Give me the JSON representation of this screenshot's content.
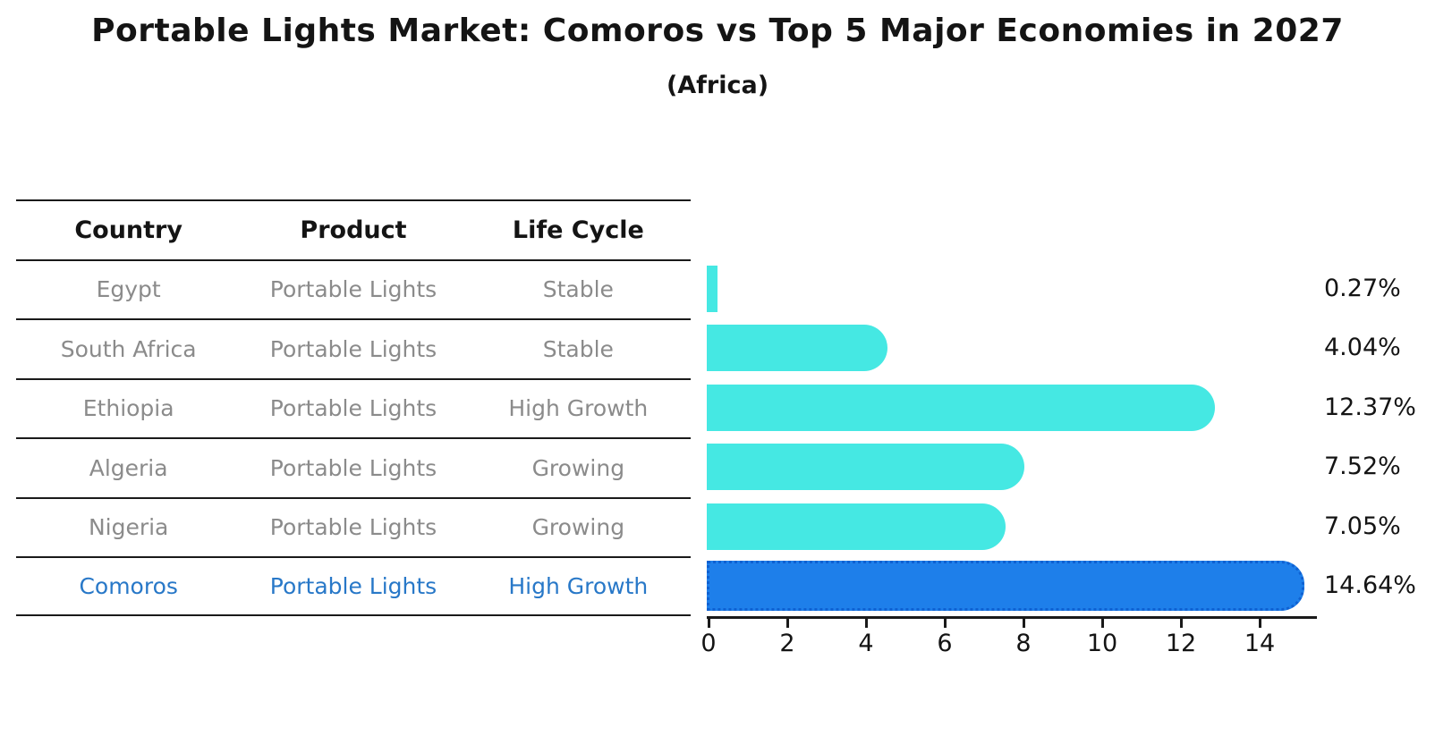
{
  "title": "Portable Lights Market: Comoros vs Top 5 Major Economies in 2027",
  "subtitle": "(Africa)",
  "table": {
    "headers": [
      "Country",
      "Product",
      "Life Cycle"
    ],
    "rows": [
      {
        "country": "Egypt",
        "product": "Portable Lights",
        "life_cycle": "Stable",
        "highlight": false
      },
      {
        "country": "South Africa",
        "product": "Portable Lights",
        "life_cycle": "Stable",
        "highlight": false
      },
      {
        "country": "Ethiopia",
        "product": "Portable Lights",
        "life_cycle": "High Growth",
        "highlight": false
      },
      {
        "country": "Algeria",
        "product": "Portable Lights",
        "life_cycle": "Growing",
        "highlight": false
      },
      {
        "country": "Nigeria",
        "product": "Portable Lights",
        "life_cycle": "Growing",
        "highlight": false
      },
      {
        "country": "Comoros",
        "product": "Portable Lights",
        "life_cycle": "High Growth",
        "highlight": true
      }
    ]
  },
  "chart_data": {
    "type": "bar",
    "orientation": "horizontal",
    "title": "Portable Lights Market: Comoros vs Top 5 Major Economies in 2027 (Africa)",
    "categories": [
      "Egypt",
      "South Africa",
      "Ethiopia",
      "Algeria",
      "Nigeria",
      "Comoros"
    ],
    "values": [
      0.27,
      4.04,
      12.37,
      7.52,
      7.05,
      14.64
    ],
    "value_labels": [
      "0.27%",
      "4.04%",
      "12.37%",
      "7.52%",
      "7.05%",
      "14.64%"
    ],
    "xlabel": "",
    "ylabel": "",
    "xlim": [
      0,
      15.5
    ],
    "xticks": [
      0,
      2,
      4,
      6,
      8,
      10,
      12,
      14
    ],
    "grid": false,
    "legend": "none",
    "bar_color": "#45e8e3",
    "highlight_color": "#1e7fea",
    "highlight_edge_color": "#0f61d2",
    "highlight_index": 5,
    "highlight_text_color": "#2878c8",
    "text_color": "#141414",
    "muted_text_color": "#8b8b8b"
  }
}
